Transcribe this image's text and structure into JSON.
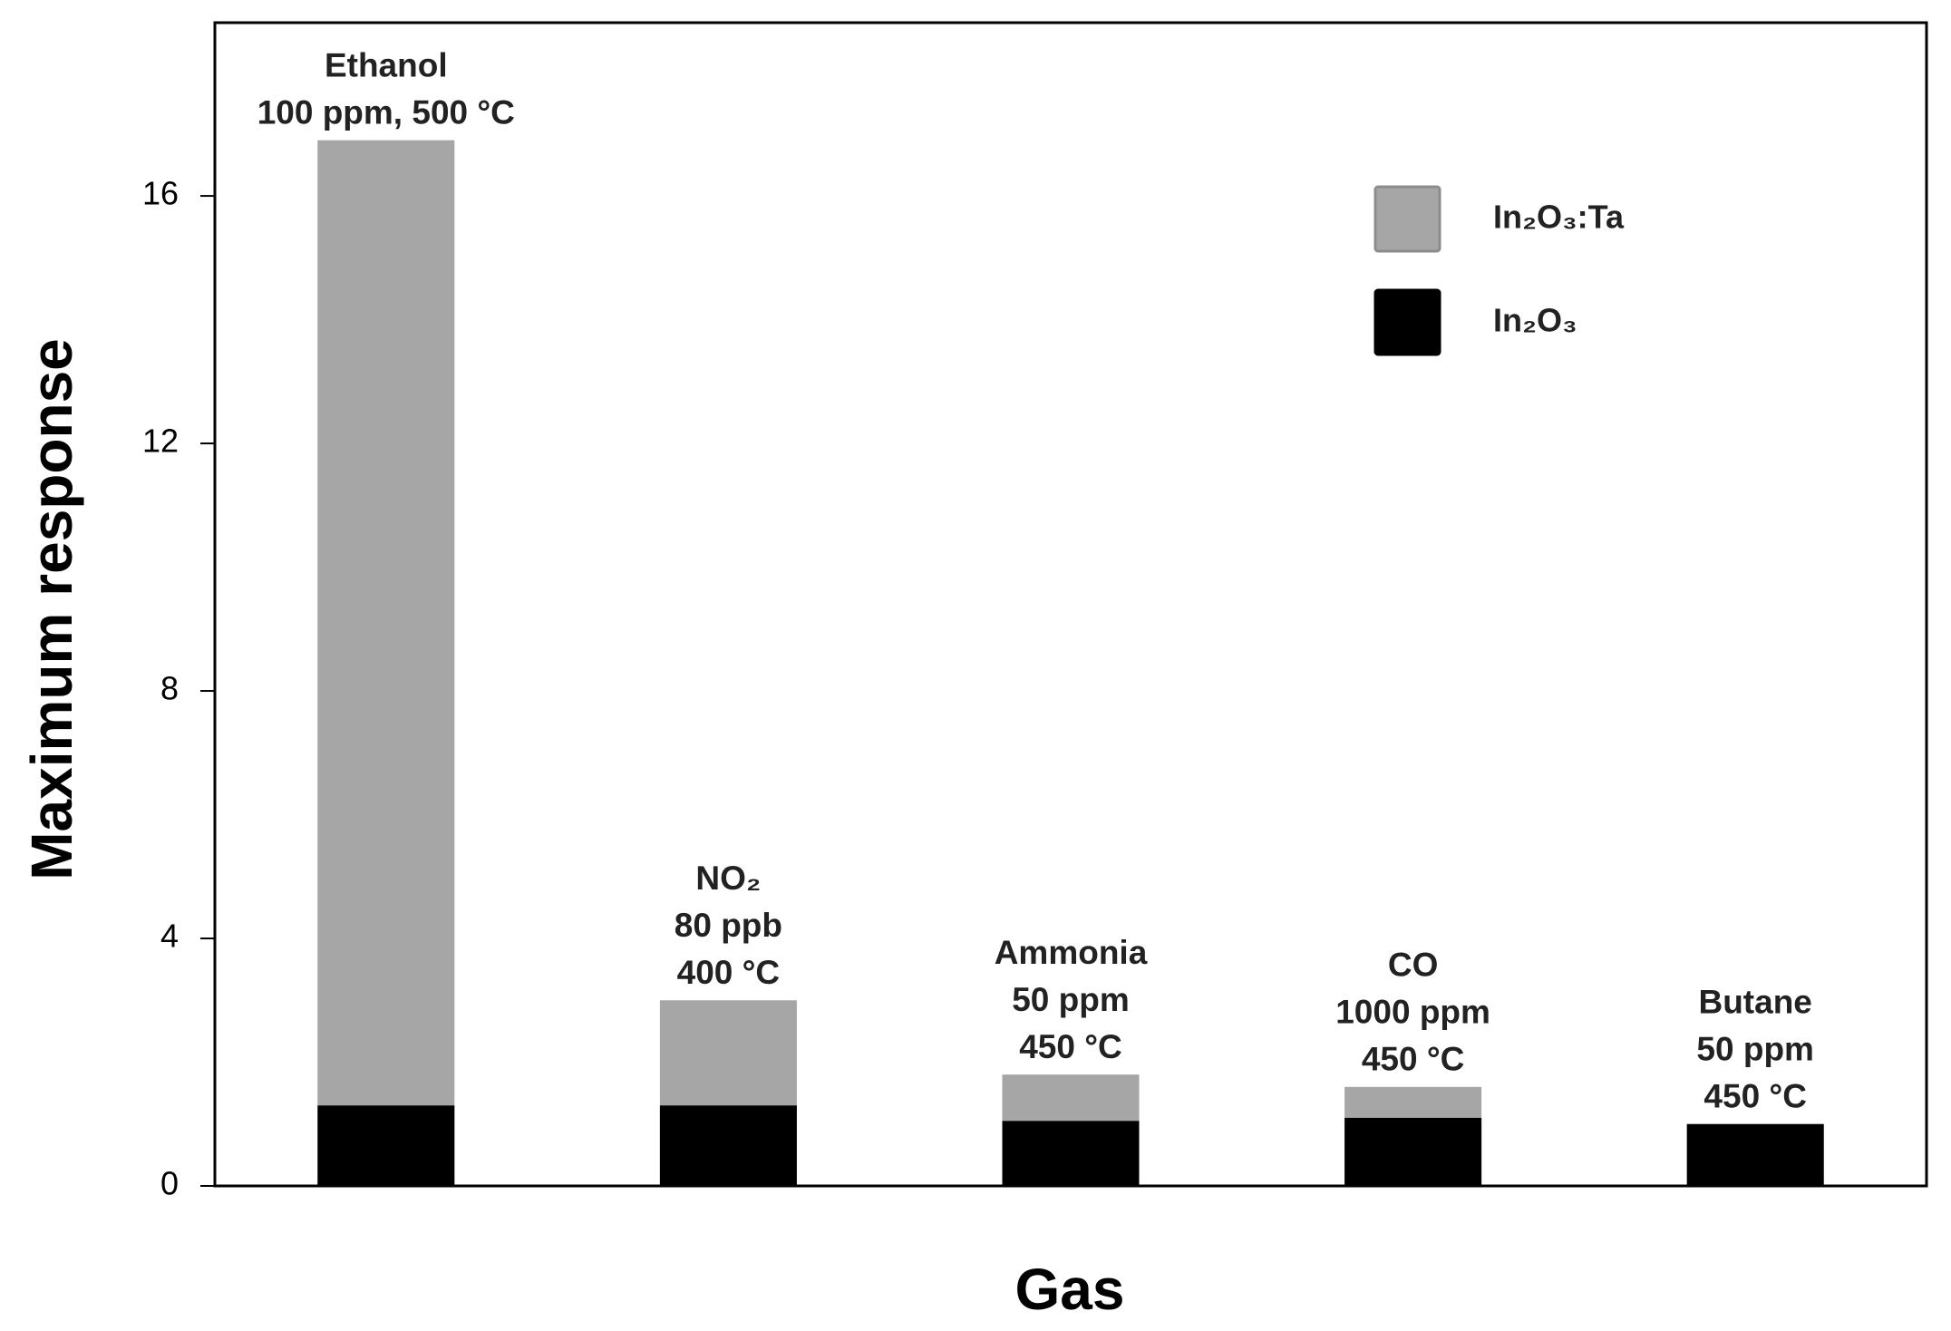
{
  "chart_data": {
    "type": "bar",
    "x_label": "Gas",
    "y_label": "Maximum response",
    "categories": [
      "Ethanol",
      "NO₂",
      "Ammonia",
      "CO",
      "Butane"
    ],
    "conditions": [
      [
        "100 ppm, 500 °C"
      ],
      [
        "80 ppb",
        "400 °C"
      ],
      [
        "50 ppm",
        "450 °C"
      ],
      [
        "1000 ppm",
        "450 °C"
      ],
      [
        "50 ppm",
        "450 °C"
      ]
    ],
    "series": [
      {
        "name": "In₂O₃:Ta",
        "color": "#a6a6a6",
        "values": [
          16.9,
          3.0,
          1.8,
          1.6,
          1.0
        ]
      },
      {
        "name": "In₂O₃",
        "color": "#000000",
        "values": [
          1.3,
          1.3,
          1.05,
          1.1,
          1.0
        ]
      }
    ],
    "ylim": [
      0,
      18.8
    ],
    "yticks": [
      0,
      4,
      8,
      12,
      16
    ],
    "legend": "upper right"
  }
}
